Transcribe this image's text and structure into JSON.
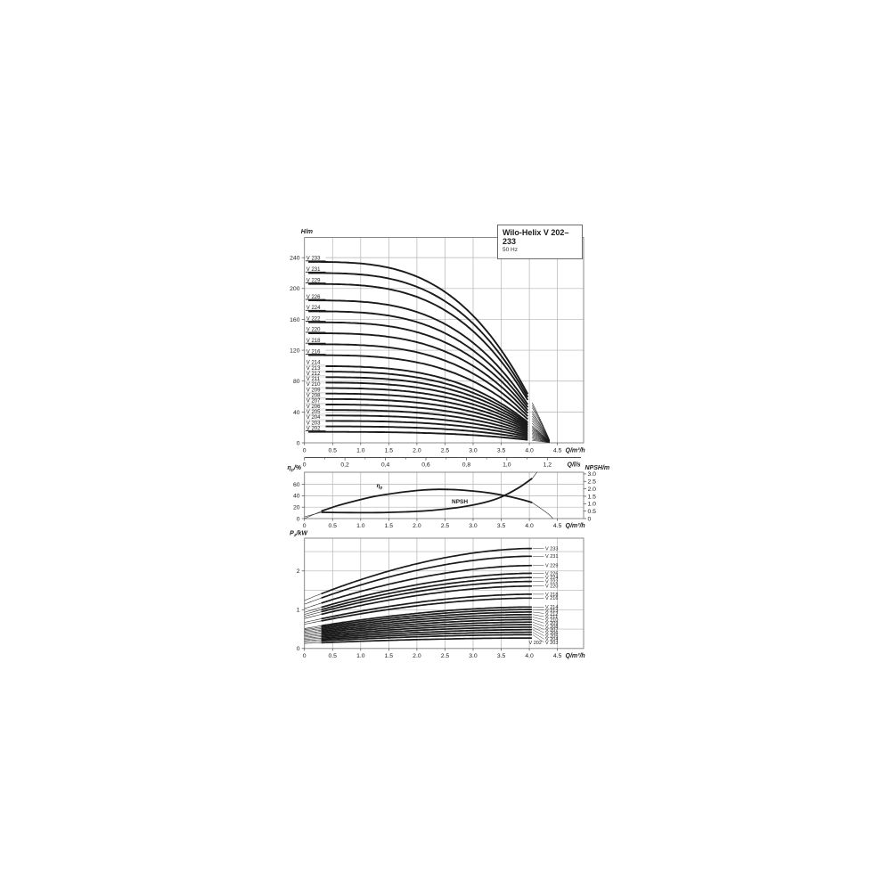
{
  "figure": {
    "title": "Wilo-Helix V 202–233",
    "subtitle": "50 Hz",
    "colors": {
      "curve": "#1a1a1a",
      "grid": "#b3b3b3",
      "border": "#7d7d7d",
      "axis_line": "#4d4d4d",
      "text": "#1a1a1a"
    }
  },
  "chart_data": [
    {
      "type": "line",
      "name": "head-flow-chart",
      "x_axis": {
        "label": "Q/m³/h",
        "ticks": [
          "0",
          "0.5",
          "1.0",
          "1.5",
          "2.0",
          "2.5",
          "3.0",
          "3.5",
          "4.0",
          "4.5"
        ],
        "tick_step": 0.5,
        "max": 4.97
      },
      "x_axis2": {
        "label": "Q/l/s",
        "ticks": [
          "0",
          "0,2",
          "0,4",
          "0,6",
          "0,8",
          "1,0",
          "1,2"
        ],
        "tick_step": 0.2,
        "units_per_m3h": 3.6
      },
      "y_axis": {
        "label_parts": [
          [
            "H",
            0
          ],
          [
            "/m",
            0
          ]
        ],
        "ticks": [
          "0",
          "40",
          "80",
          "120",
          "160",
          "200",
          "240"
        ],
        "tick_step": 40,
        "max": 266
      },
      "curve_model": {
        "q_zero": 4.38,
        "exponent": 3.2,
        "q_thick_start": 0.07,
        "q_thick_end": 4.05,
        "q_thin_end": 4.36
      },
      "series": [
        {
          "name": "V 233",
          "shutoff_head_m": 234.5
        },
        {
          "name": "V 231",
          "shutoff_head_m": 220.1
        },
        {
          "name": "V 229",
          "shutoff_head_m": 205.9
        },
        {
          "name": "V 226",
          "shutoff_head_m": 184.6
        },
        {
          "name": "V 224",
          "shutoff_head_m": 170.4
        },
        {
          "name": "V 222",
          "shutoff_head_m": 156.2
        },
        {
          "name": "V 220",
          "shutoff_head_m": 142.0
        },
        {
          "name": "V 218",
          "shutoff_head_m": 127.8
        },
        {
          "name": "V 216",
          "shutoff_head_m": 113.6
        },
        {
          "name": "V 214",
          "shutoff_head_m": 99.4
        },
        {
          "name": "V 213",
          "shutoff_head_m": 92.3
        },
        {
          "name": "V 212",
          "shutoff_head_m": 85.2
        },
        {
          "name": "V 211",
          "shutoff_head_m": 78.1
        },
        {
          "name": "V 210",
          "shutoff_head_m": 71.0
        },
        {
          "name": "V 209",
          "shutoff_head_m": 63.9
        },
        {
          "name": "V 208",
          "shutoff_head_m": 56.8
        },
        {
          "name": "V 207",
          "shutoff_head_m": 49.7
        },
        {
          "name": "V 206",
          "shutoff_head_m": 42.6
        },
        {
          "name": "V 205",
          "shutoff_head_m": 35.5
        },
        {
          "name": "V 204",
          "shutoff_head_m": 28.4
        },
        {
          "name": "V 203",
          "shutoff_head_m": 21.3
        },
        {
          "name": "V 202",
          "shutoff_head_m": 14.2
        }
      ]
    },
    {
      "type": "line",
      "name": "efficiency-npsh-chart",
      "x_axis": {
        "label": "Q/m³/h",
        "ticks": [
          "0",
          "0.5",
          "1.0",
          "1.5",
          "2.0",
          "2.5",
          "3.0",
          "3.5",
          "4.0",
          "4.5"
        ],
        "tick_step": 0.5,
        "max": 4.97
      },
      "y_axis_left": {
        "label_parts": [
          [
            "η",
            0
          ],
          [
            "p",
            1
          ],
          [
            "/%",
            0
          ]
        ],
        "ticks": [
          "0",
          "20",
          "40",
          "60"
        ],
        "tick_step": 20,
        "max": 81
      },
      "y_axis_right": {
        "label": "NPSH/m",
        "ticks": [
          "0",
          "0.5",
          "1.0",
          "1.5",
          "2.0",
          "2.5",
          "3.0"
        ],
        "tick_step": 0.5,
        "max": 3.11
      },
      "series": [
        {
          "name": "ηp",
          "label_parts": [
            [
              "η",
              0
            ],
            [
              "p",
              1
            ]
          ],
          "axis": "left",
          "thick_range": [
            0.3,
            4.05
          ],
          "label_at": [
            1.28,
            55
          ],
          "points": [
            [
              0,
              0
            ],
            [
              0.15,
              6.5
            ],
            [
              0.3,
              13
            ],
            [
              0.6,
              23
            ],
            [
              0.9,
              31
            ],
            [
              1.2,
              38
            ],
            [
              1.5,
              43
            ],
            [
              1.8,
              47
            ],
            [
              2.1,
              50
            ],
            [
              2.4,
              51.2
            ],
            [
              2.7,
              50.6
            ],
            [
              3.0,
              48.3
            ],
            [
              3.3,
              44.8
            ],
            [
              3.6,
              39.5
            ],
            [
              3.9,
              32.5
            ],
            [
              4.05,
              28
            ],
            [
              4.2,
              18
            ],
            [
              4.35,
              7
            ],
            [
              4.42,
              0
            ]
          ]
        },
        {
          "name": "NPSH",
          "label_parts": [
            [
              "NPSH",
              0
            ]
          ],
          "axis": "right",
          "thick_range": [
            0.3,
            4.05
          ],
          "label_at": [
            2.62,
            1.02
          ],
          "points": [
            [
              0,
              0.12
            ],
            [
              0.3,
              0.42
            ],
            [
              0.8,
              0.4
            ],
            [
              1.3,
              0.4
            ],
            [
              1.8,
              0.45
            ],
            [
              2.3,
              0.56
            ],
            [
              2.8,
              0.78
            ],
            [
              3.2,
              1.08
            ],
            [
              3.5,
              1.45
            ],
            [
              3.8,
              2.05
            ],
            [
              4.05,
              2.7
            ],
            [
              4.15,
              3.2
            ],
            [
              4.25,
              3.9
            ]
          ]
        }
      ]
    },
    {
      "type": "line",
      "name": "power-flow-chart",
      "x_axis": {
        "label": "Q/m³/h",
        "ticks": [
          "0",
          "0.5",
          "1.0",
          "1.5",
          "2.0",
          "2.5",
          "3.0",
          "3.5",
          "4.0",
          "4.5"
        ],
        "tick_step": 0.5,
        "max": 4.97
      },
      "y_axis": {
        "label_parts": [
          [
            "P",
            0
          ],
          [
            "2",
            1
          ],
          [
            "/kW",
            0
          ]
        ],
        "ticks": [
          "0",
          "1",
          "2"
        ],
        "tick_step": 1,
        "max": 2.84,
        "grid_step": 0.5
      },
      "curve_model": {
        "start_ratio": 0.48,
        "exponent": 1.8,
        "q_thick_start": 0.3,
        "q_end": 4.05
      },
      "series": [
        {
          "name": "V 233",
          "p2_end_kw": 2.58
        },
        {
          "name": "V 231",
          "p2_end_kw": 2.38
        },
        {
          "name": "V 229",
          "p2_end_kw": 2.14
        },
        {
          "name": "V 226",
          "p2_end_kw": 1.94
        },
        {
          "name": "V 224",
          "p2_end_kw": 1.83
        },
        {
          "name": "V 222",
          "p2_end_kw": 1.73
        },
        {
          "name": "V 220",
          "p2_end_kw": 1.61
        },
        {
          "name": "V 218",
          "p2_end_kw": 1.4
        },
        {
          "name": "V 216",
          "p2_end_kw": 1.3
        },
        {
          "name": "V 214",
          "p2_end_kw": 1.07
        },
        {
          "name": "V 213",
          "p2_end_kw": 1.005
        },
        {
          "name": "V 212",
          "p2_end_kw": 0.94
        },
        {
          "name": "V 211",
          "p2_end_kw": 0.875
        },
        {
          "name": "V 210",
          "p2_end_kw": 0.81
        },
        {
          "name": "V 209",
          "p2_end_kw": 0.745
        },
        {
          "name": "V 208",
          "p2_end_kw": 0.68
        },
        {
          "name": "V 207",
          "p2_end_kw": 0.615
        },
        {
          "name": "V 206",
          "p2_end_kw": 0.55
        },
        {
          "name": "V 205",
          "p2_end_kw": 0.485
        },
        {
          "name": "V 204",
          "p2_end_kw": 0.42
        },
        {
          "name": "V 203",
          "p2_end_kw": 0.355
        },
        {
          "name": "V 202",
          "p2_end_kw": 0.27,
          "label_beside_prev": true
        }
      ]
    }
  ]
}
